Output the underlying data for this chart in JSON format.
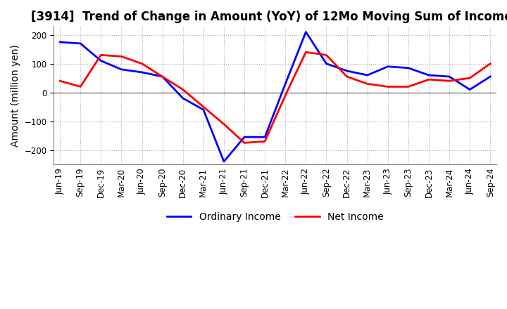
{
  "title": "[3914]  Trend of Change in Amount (YoY) of 12Mo Moving Sum of Incomes",
  "ylabel": "Amount (million yen)",
  "ylim": [
    -250,
    230
  ],
  "yticks": [
    -200,
    -100,
    0,
    100,
    200
  ],
  "x_labels": [
    "Jun-19",
    "Sep-19",
    "Dec-19",
    "Mar-20",
    "Jun-20",
    "Sep-20",
    "Dec-20",
    "Mar-21",
    "Jun-21",
    "Sep-21",
    "Dec-21",
    "Mar-22",
    "Jun-22",
    "Sep-22",
    "Dec-22",
    "Mar-23",
    "Jun-23",
    "Sep-23",
    "Dec-23",
    "Mar-24",
    "Jun-24",
    "Sep-24"
  ],
  "ordinary_income": [
    175,
    170,
    110,
    80,
    70,
    55,
    -20,
    -60,
    -240,
    -155,
    -155,
    30,
    210,
    100,
    75,
    60,
    90,
    85,
    60,
    55,
    10,
    55
  ],
  "net_income": [
    40,
    20,
    130,
    125,
    100,
    55,
    10,
    -50,
    -110,
    -175,
    -170,
    -10,
    140,
    130,
    55,
    30,
    20,
    20,
    45,
    40,
    50,
    100
  ],
  "ordinary_color": "#0000ff",
  "net_color": "#ff0000",
  "background_color": "#ffffff",
  "grid_color": "#aaaaaa",
  "title_fontsize": 12,
  "axis_fontsize": 10,
  "tick_fontsize": 8.5,
  "legend_fontsize": 10
}
